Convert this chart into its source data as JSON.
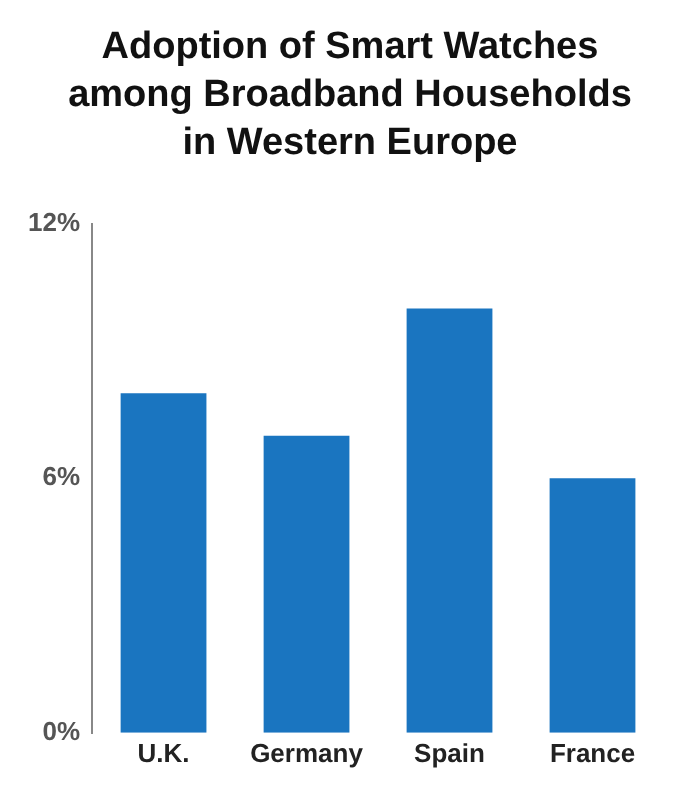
{
  "chart_data": {
    "type": "bar",
    "title": "Adoption of Smart Watches among Broadband Households in Western Europe",
    "categories": [
      "U.K.",
      "Germany",
      "Spain",
      "France"
    ],
    "values": [
      8,
      7,
      10,
      6
    ],
    "color": "#1a75c0",
    "ylim": [
      0,
      12
    ],
    "yticks": [
      {
        "value": 0,
        "label": "0%"
      },
      {
        "value": 6,
        "label": "6%"
      },
      {
        "value": 12,
        "label": "12%"
      }
    ],
    "grid": false,
    "legend": false
  }
}
